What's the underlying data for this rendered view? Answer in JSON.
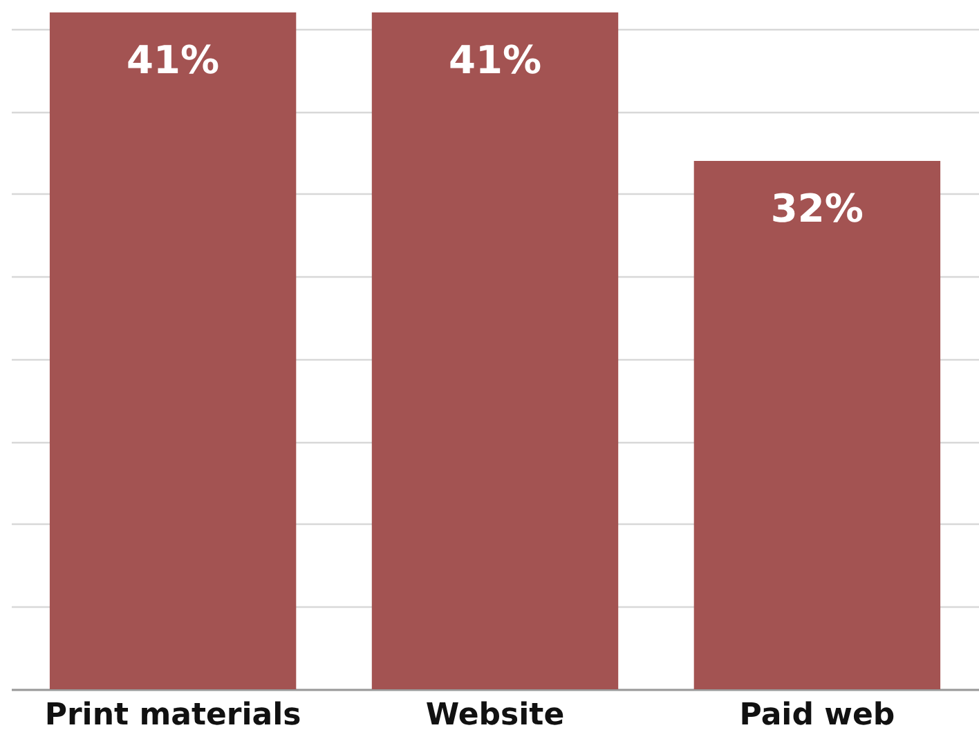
{
  "chart_data": {
    "type": "bar",
    "categories": [
      "Print materials",
      "Website",
      "Paid web"
    ],
    "values": [
      41,
      41,
      32
    ],
    "color": "#a35352",
    "value_labels": [
      "41%",
      "41%",
      "32%"
    ],
    "ylim": [
      0,
      41
    ],
    "yticks": [
      {
        "value": 0,
        "label": null
      },
      {
        "value": 5,
        "label": null
      },
      {
        "value": 10,
        "label": null
      },
      {
        "value": 15,
        "label": null
      },
      {
        "value": 20,
        "label": null
      },
      {
        "value": 25,
        "label": null
      },
      {
        "value": 30,
        "label": null
      },
      {
        "value": 35,
        "label": null
      },
      {
        "value": 40,
        "label": null
      }
    ],
    "grid": "y",
    "tick_labels": "x"
  }
}
